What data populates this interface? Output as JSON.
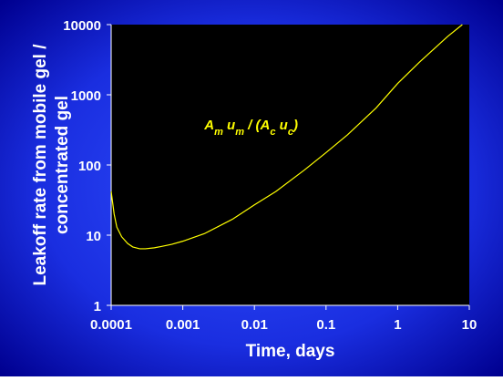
{
  "chart_data": {
    "type": "line",
    "ylabel": [
      "Leakoff rate from mobile gel /",
      "concentrated gel"
    ],
    "xlabel": "Time, days",
    "x": [
      0.0001,
      0.00011,
      0.00012,
      0.00014,
      0.00017,
      0.0002,
      0.00025,
      0.0003,
      0.0004,
      0.0005,
      0.0007,
      0.001,
      0.002,
      0.005,
      0.01,
      0.02,
      0.05,
      0.1,
      0.2,
      0.5,
      1,
      2,
      5,
      8
    ],
    "series": [
      {
        "color": "#ffff00",
        "values": [
          42,
          20,
          13,
          9.5,
          7.6,
          6.8,
          6.4,
          6.4,
          6.6,
          6.9,
          7.4,
          8.2,
          10.5,
          17,
          27,
          42,
          85,
          150,
          270,
          650,
          1450,
          2900,
          6800,
          10000
        ]
      }
    ],
    "xlim": [
      0.0001,
      10
    ],
    "ylim": [
      1,
      10000
    ],
    "xticks": [
      0.0001,
      0.001,
      0.01,
      0.1,
      1,
      10
    ],
    "yticks": [
      1,
      10,
      100,
      1000,
      10000
    ],
    "xlog": true,
    "ylog": true,
    "grid": false,
    "annotation": {
      "x": 0.002,
      "y": 1000,
      "color": "#ffff00",
      "parts": [
        {
          "text": "A",
          "sub": "m"
        },
        {
          "text": " u",
          "sub": "m"
        },
        {
          "text": " / (A",
          "sub": "c"
        },
        {
          "text": " u",
          "sub": "c"
        },
        {
          "text": ")"
        }
      ]
    }
  }
}
